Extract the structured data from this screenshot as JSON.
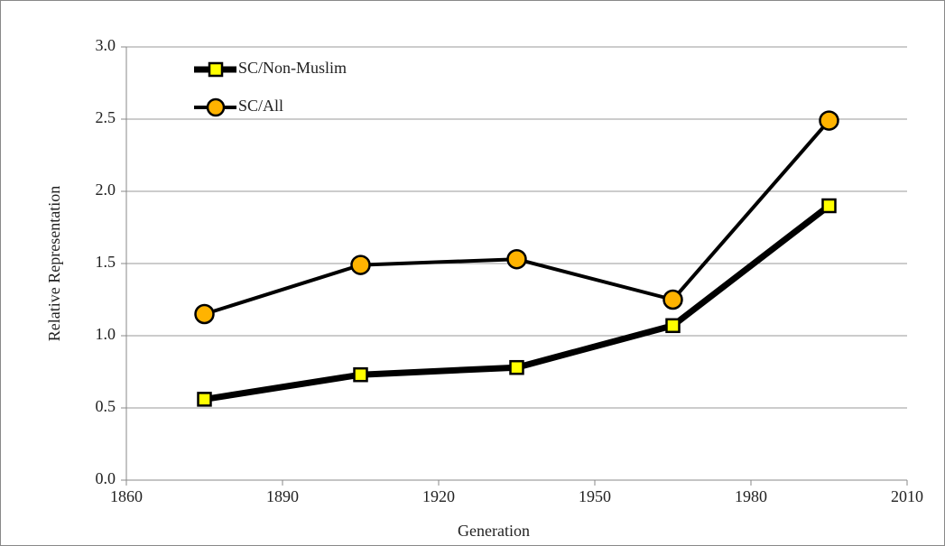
{
  "chart_data": {
    "type": "line",
    "x_label": "Generation",
    "y_label": "Relative Representation",
    "x": [
      1875,
      1905,
      1935,
      1965,
      1995
    ],
    "series": [
      {
        "name": "SC/Non-Muslim",
        "color": "#ffff00",
        "marker": "square",
        "values": [
          0.56,
          0.73,
          0.78,
          1.07,
          1.9
        ]
      },
      {
        "name": "SC/All",
        "color": "#ffb300",
        "marker": "circle",
        "values": [
          1.15,
          1.49,
          1.53,
          1.25,
          2.49
        ]
      }
    ],
    "xlim": [
      1860,
      2010
    ],
    "xticks": [
      1860,
      1890,
      1920,
      1950,
      1980,
      2010
    ],
    "ylim": [
      0,
      3
    ],
    "yticks": [
      {
        "value": 0,
        "label": "0.0"
      },
      0.5,
      {
        "value": 1,
        "label": "1.0"
      },
      1.5,
      {
        "value": 2,
        "label": "2.0"
      },
      2.5,
      {
        "value": 3,
        "label": "3.0"
      }
    ],
    "grid": true,
    "legend": "upper left"
  }
}
